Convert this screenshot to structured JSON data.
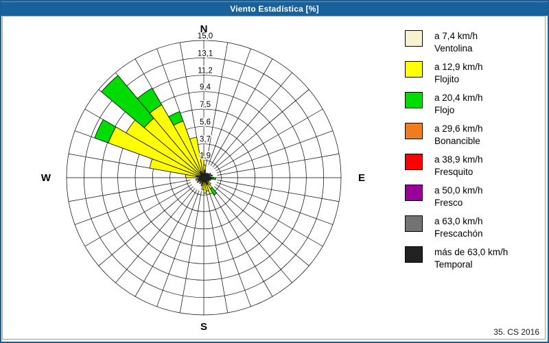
{
  "window": {
    "title": "Viento Estadística [%]"
  },
  "footer": {
    "stamp": "35. CS 2016"
  },
  "legend": {
    "items": [
      {
        "speed": "a 7,4 km/h",
        "name": "Ventolina",
        "color": "#F8F2D0"
      },
      {
        "speed": "a 12,9 km/h",
        "name": "Flojito",
        "color": "#FFFF00"
      },
      {
        "speed": "a 20,4 km/h",
        "name": "Flojo",
        "color": "#00DC00"
      },
      {
        "speed": "a 29,6 km/h",
        "name": "Bonancible",
        "color": "#EE7D20"
      },
      {
        "speed": "a 38,9 km/h",
        "name": "Fresquito",
        "color": "#FF0000"
      },
      {
        "speed": "a 50,0 km/h",
        "name": "Fresco",
        "color": "#9A009A"
      },
      {
        "speed": "a 63,0 km/h",
        "name": "Frescachón",
        "color": "#737373"
      },
      {
        "speed": "más de 63,0 km/h",
        "name": "Temporal",
        "color": "#222222"
      }
    ]
  },
  "chart_data": {
    "type": "bar",
    "subtype": "windrose-stacked-polar",
    "units": "%",
    "rmax": 15.0,
    "ring_values": [
      1.9,
      3.7,
      5.6,
      7.5,
      9.4,
      11.2,
      13.1,
      15.0
    ],
    "ring_labels": [
      "1,9",
      "3,7",
      "5,6",
      "7,5",
      "9,4",
      "11,2",
      "13,1",
      "15,0"
    ],
    "sector_width_deg": 10,
    "compass": {
      "n": "N",
      "e": "E",
      "s": "S",
      "w": "W"
    },
    "series_colors": {
      "ventolina": "#F8F2D0",
      "flojito": "#FFFF00",
      "flojo": "#00DC00",
      "bonancible": "#EE7D20",
      "fresquito": "#FF0000",
      "fresco": "#9A009A",
      "frescachon": "#737373",
      "temporal": "#222222"
    },
    "sectors": [
      {
        "dir": 275,
        "stack": [
          [
            "flojito",
            2.0
          ]
        ]
      },
      {
        "dir": 285,
        "stack": [
          [
            "flojito",
            6.0
          ]
        ]
      },
      {
        "dir": 295,
        "stack": [
          [
            "flojito",
            11.1
          ],
          [
            "flojo",
            12.7
          ]
        ]
      },
      {
        "dir": 305,
        "stack": [
          [
            "flojito",
            9.8
          ]
        ]
      },
      {
        "dir": 315,
        "stack": [
          [
            "flojito",
            8.5
          ],
          [
            "flojo",
            14.6
          ]
        ]
      },
      {
        "dir": 325,
        "stack": [
          [
            "flojito",
            9.2
          ],
          [
            "flojo",
            11.3
          ]
        ]
      },
      {
        "dir": 335,
        "stack": [
          [
            "flojito",
            6.6
          ],
          [
            "flojo",
            7.7
          ]
        ]
      },
      {
        "dir": 345,
        "stack": [
          [
            "flojito",
            4.5
          ]
        ]
      },
      {
        "dir": 355,
        "stack": [
          [
            "flojito",
            2.7
          ]
        ]
      },
      {
        "dir": 5,
        "stack": [
          [
            "flojito",
            1.4
          ]
        ]
      },
      {
        "dir": 95,
        "stack": [
          [
            "flojito",
            0.4
          ],
          [
            "flojo",
            1.3
          ]
        ]
      },
      {
        "dir": 105,
        "stack": [
          [
            "flojito",
            0.8
          ]
        ]
      },
      {
        "dir": 135,
        "stack": [
          [
            "flojito",
            1.0
          ]
        ]
      },
      {
        "dir": 145,
        "stack": [
          [
            "flojito",
            1.4
          ],
          [
            "flojo",
            2.2
          ]
        ]
      },
      {
        "dir": 155,
        "stack": [
          [
            "flojito",
            1.9
          ]
        ]
      },
      {
        "dir": 165,
        "stack": [
          [
            "flojito",
            1.5
          ]
        ]
      },
      {
        "dir": 175,
        "stack": [
          [
            "flojito",
            1.7
          ]
        ]
      },
      {
        "dir": 185,
        "stack": [
          [
            "flojito",
            1.3
          ]
        ]
      },
      {
        "dir": 195,
        "stack": [
          [
            "flojito",
            0.9
          ]
        ]
      },
      {
        "dir": 255,
        "stack": [
          [
            "flojito",
            0.9
          ]
        ]
      }
    ],
    "spikes": [
      {
        "dir": 10,
        "len": 0.9
      },
      {
        "dir": 25,
        "len": 0.6
      },
      {
        "dir": 45,
        "len": 0.7
      },
      {
        "dir": 60,
        "len": 0.9
      },
      {
        "dir": 75,
        "len": 1.0
      },
      {
        "dir": 90,
        "len": 1.1
      },
      {
        "dir": 110,
        "len": 0.8
      },
      {
        "dir": 125,
        "len": 0.7
      },
      {
        "dir": 150,
        "len": 0.9
      },
      {
        "dir": 195,
        "len": 0.8
      },
      {
        "dir": 215,
        "len": 0.8
      },
      {
        "dir": 235,
        "len": 0.9
      },
      {
        "dir": 250,
        "len": 0.7
      },
      {
        "dir": 280,
        "len": 0.9
      },
      {
        "dir": 330,
        "len": 0.8
      }
    ]
  }
}
